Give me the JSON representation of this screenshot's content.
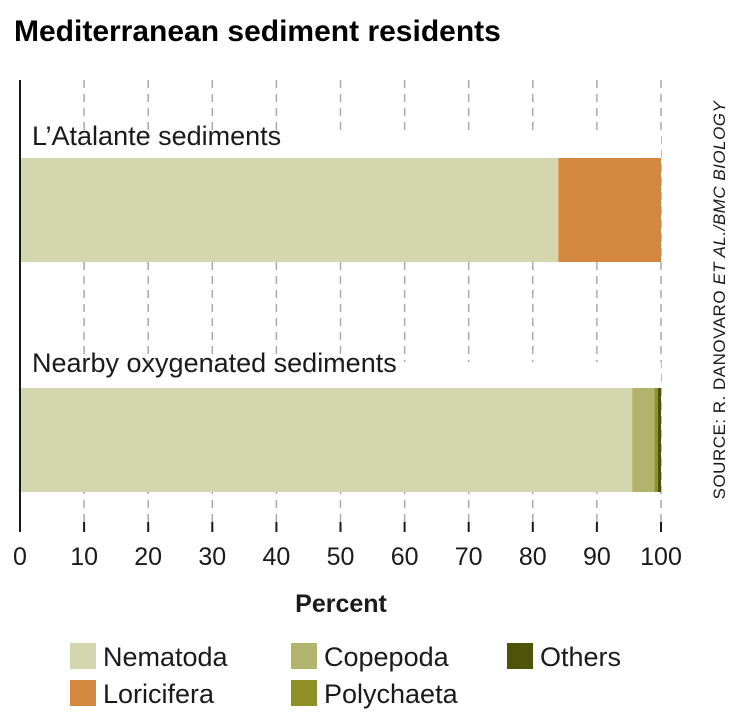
{
  "chart_data": {
    "type": "bar",
    "orientation": "horizontal",
    "stacked": true,
    "title": "Mediterranean sediment residents",
    "xlabel": "Percent",
    "xlim": [
      0,
      100
    ],
    "xticks": [
      0,
      10,
      20,
      30,
      40,
      50,
      60,
      70,
      80,
      90,
      100
    ],
    "grid": true,
    "legend_position": "bottom",
    "categories": [
      "L’Atalante sediments",
      "Nearby oxygenated sediments"
    ],
    "series": [
      {
        "name": "Nematoda",
        "color": "#d4d6ae",
        "values": [
          84,
          95.5
        ]
      },
      {
        "name": "Loricifera",
        "color": "#d4873f",
        "values": [
          16,
          0
        ]
      },
      {
        "name": "Copepoda",
        "color": "#b2b46e",
        "values": [
          0,
          3.5
        ]
      },
      {
        "name": "Polychaeta",
        "color": "#8f9128",
        "values": [
          0,
          0.5
        ]
      },
      {
        "name": "Others",
        "color": "#4d5308",
        "values": [
          0,
          0.5
        ]
      }
    ],
    "source": {
      "prefix": "SOURCE: R. DANOVARO ",
      "italic": "ET AL./BMC BIOLOGY"
    }
  }
}
